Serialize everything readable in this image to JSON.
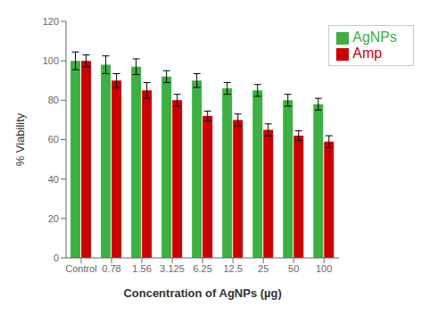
{
  "chart_data": {
    "type": "bar",
    "categories": [
      "Control",
      "0.78",
      "1.56",
      "3.125",
      "6.25",
      "12.5",
      "25",
      "50",
      "100"
    ],
    "series": [
      {
        "name": "AgNPs",
        "color": "#3cb043",
        "values": [
          100,
          98,
          97,
          92,
          90,
          86,
          85,
          80,
          78
        ],
        "errors": [
          4.5,
          4.5,
          4,
          3,
          3.5,
          3,
          3,
          3,
          3
        ]
      },
      {
        "name": "Amp",
        "color": "#cc0000",
        "values": [
          100,
          90,
          85,
          80,
          72,
          70,
          65,
          62,
          59
        ],
        "errors": [
          3,
          3.5,
          4,
          3,
          2.5,
          3,
          3,
          2.5,
          3
        ]
      }
    ],
    "xlabel": "Concentration of AgNPs (µg)",
    "ylabel": "% Viability",
    "ylim": [
      0,
      120
    ],
    "yticks": [
      0,
      20,
      40,
      60,
      80,
      100,
      120
    ],
    "grid": false,
    "legend": "upper right"
  }
}
